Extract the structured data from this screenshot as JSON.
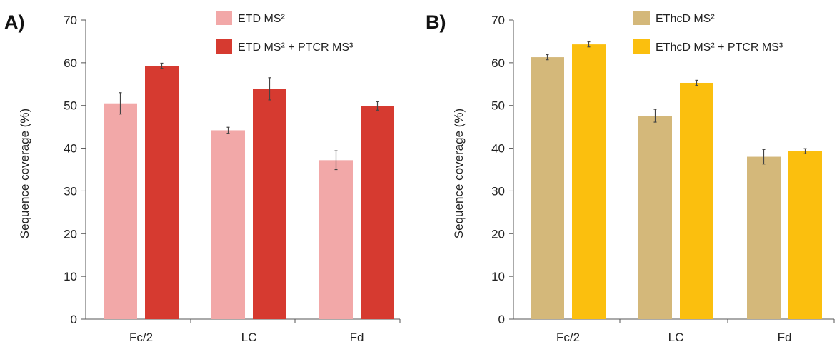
{
  "chart_data": [
    {
      "type": "bar",
      "panel_label": "A)",
      "ylabel": "Sequence coverage (%)",
      "ylim": [
        0,
        70
      ],
      "yticks": [
        "0",
        "10",
        "20",
        "30",
        "40",
        "50",
        "60",
        "70"
      ],
      "categories": [
        "Fc/2",
        "LC",
        "Fd"
      ],
      "legend_position": "top-center",
      "series": [
        {
          "name": "ETD MS²",
          "color": "#f2a8a8",
          "values": [
            50.5,
            44.2,
            37.2
          ],
          "errors": [
            2.5,
            0.7,
            2.2
          ]
        },
        {
          "name": "ETD MS² + PTCR MS³",
          "color": "#d63a30",
          "values": [
            59.3,
            53.9,
            49.9
          ],
          "errors": [
            0.6,
            2.6,
            1.0
          ]
        }
      ]
    },
    {
      "type": "bar",
      "panel_label": "B)",
      "ylabel": "Sequence coverage (%)",
      "ylim": [
        0,
        70
      ],
      "yticks": [
        "0",
        "10",
        "20",
        "30",
        "40",
        "50",
        "60",
        "70"
      ],
      "categories": [
        "Fc/2",
        "LC",
        "Fd"
      ],
      "legend_position": "top-center",
      "series": [
        {
          "name": "EThcD MS²",
          "color": "#d4b87a",
          "values": [
            61.3,
            47.6,
            38.0
          ],
          "errors": [
            0.6,
            1.5,
            1.7
          ]
        },
        {
          "name": "EThcD MS² + PTCR MS³",
          "color": "#fbbf0e",
          "values": [
            64.3,
            55.3,
            39.3
          ],
          "errors": [
            0.6,
            0.6,
            0.6
          ]
        }
      ]
    }
  ]
}
